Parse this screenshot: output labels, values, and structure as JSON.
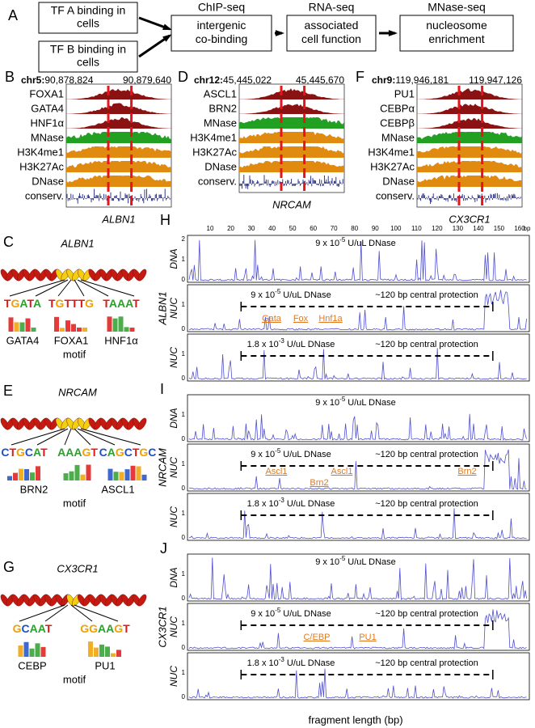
{
  "flow": {
    "label": "A",
    "inputs": [
      [
        "TF A binding in",
        "cells"
      ],
      [
        "TF B binding in",
        "cells"
      ]
    ],
    "steps": [
      {
        "title": "ChIP-seq",
        "body": [
          "intergenic",
          "co-binding"
        ]
      },
      {
        "title": "RNA-seq",
        "body": [
          "associated",
          "cell function"
        ]
      },
      {
        "title": "MNase-seq",
        "body": [
          "nucleosome",
          "enrichment"
        ]
      }
    ]
  },
  "browsers": [
    {
      "label": "B",
      "chrom": "chr5:",
      "start": "90,878,824",
      "end": "90,879,640",
      "gene": "ALBN1",
      "tracks": [
        {
          "name": "FOXA1",
          "color": "#8b1212"
        },
        {
          "name": "GATA4",
          "color": "#8b1212"
        },
        {
          "name": "HNF1α",
          "color": "#8b1212"
        },
        {
          "name": "MNase",
          "color": "#22a022"
        },
        {
          "name": "H3K4me1",
          "color": "#e08a10"
        },
        {
          "name": "H3K27Ac",
          "color": "#e08a10"
        },
        {
          "name": "DNase",
          "color": "#e08a10"
        },
        {
          "name": "conserv.",
          "color": "#1a237e"
        }
      ]
    },
    {
      "label": "D",
      "chrom": "chr12:",
      "start": "45,445,022",
      "end": "45,445,670",
      "gene": "NRCAM",
      "tracks": [
        {
          "name": "ASCL1",
          "color": "#8b1212"
        },
        {
          "name": "BRN2",
          "color": "#8b1212"
        },
        {
          "name": "MNase",
          "color": "#22a022"
        },
        {
          "name": "H3K4me1",
          "color": "#e08a10"
        },
        {
          "name": "H3K27Ac",
          "color": "#e08a10"
        },
        {
          "name": "DNase",
          "color": "#e08a10"
        },
        {
          "name": "conserv.",
          "color": "#1a237e"
        }
      ]
    },
    {
      "label": "F",
      "chrom": "chr9:",
      "start": "119,946,181",
      "end": "119,947,126",
      "gene": "CX3CR1",
      "tracks": [
        {
          "name": "PU1",
          "color": "#8b1212"
        },
        {
          "name": "CEBPα",
          "color": "#8b1212"
        },
        {
          "name": "CEBPβ",
          "color": "#8b1212"
        },
        {
          "name": "MNase",
          "color": "#22a022"
        },
        {
          "name": "H3K4me1",
          "color": "#e08a10"
        },
        {
          "name": "H3K27Ac",
          "color": "#e08a10"
        },
        {
          "name": "DNase",
          "color": "#e08a10"
        },
        {
          "name": "conserv.",
          "color": "#1a237e"
        }
      ]
    }
  ],
  "motifs": [
    {
      "label": "C",
      "gene": "ALBN1",
      "sequences": [
        "TGATA",
        "TGTTTG",
        "TAAAT"
      ],
      "factors": [
        "GATA4",
        "FOXA1",
        "HNF1α"
      ],
      "caption": "motif"
    },
    {
      "label": "E",
      "gene": "NRCAM",
      "sequences": [
        "CTGCAT",
        "AAAGT",
        "CAGCTGC"
      ],
      "factors": [
        "BRN2",
        "ASCL1"
      ],
      "caption": "motif"
    },
    {
      "label": "G",
      "gene": "CX3CR1",
      "sequences": [
        "GCAAT",
        "GGAAGT"
      ],
      "factors": [
        "CEBP",
        "PU1"
      ],
      "caption": "motif"
    }
  ],
  "traces": {
    "xticks": [
      10,
      20,
      30,
      40,
      50,
      60,
      70,
      80,
      90,
      100,
      110,
      120,
      130,
      140,
      150,
      160
    ],
    "xunit": "bp",
    "xlabel": "fragment length (bp)",
    "panels": [
      {
        "label": "H",
        "gene": "ALBN1",
        "rows": [
          {
            "ylabel": "DNA",
            "yticks": [
              0,
              1,
              2
            ],
            "dose": {
              "mantissa": "9 x 10",
              "exponent": "-5",
              "unit": "U/uL DNase"
            }
          },
          {
            "ylabel": "NUC",
            "yticks": [
              0,
              1
            ],
            "dose": {
              "mantissa": "9 x 10",
              "exponent": "-5",
              "unit": "U/uL DNase"
            },
            "protection": "~120 bp central protection",
            "sites": [
              "Gata",
              "Fox",
              "Hnf1a"
            ]
          },
          {
            "ylabel": "NUC",
            "yticks": [
              0,
              1
            ],
            "dose": {
              "mantissa": "1.8 x 10",
              "exponent": "-3",
              "unit": "U/uL DNase"
            },
            "protection": "~120 bp central protection"
          }
        ]
      },
      {
        "label": "I",
        "gene": "NRCAM",
        "rows": [
          {
            "ylabel": "DNA",
            "yticks": [
              0,
              1
            ],
            "dose": {
              "mantissa": "9 x 10",
              "exponent": "-5",
              "unit": "U/uL DNase"
            }
          },
          {
            "ylabel": "NUC",
            "yticks": [
              0,
              1
            ],
            "dose": {
              "mantissa": "9 x 10",
              "exponent": "-5",
              "unit": "U/uL DNase"
            },
            "protection": "~120 bp central protection",
            "sites": [
              "Ascl1",
              "Brn2",
              "Ascl1",
              "Brn2"
            ]
          },
          {
            "ylabel": "NUC",
            "yticks": [
              0,
              1
            ],
            "dose": {
              "mantissa": "1.8 x 10",
              "exponent": "-3",
              "unit": "U/uL DNase"
            },
            "protection": "~120 bp central protection"
          }
        ]
      },
      {
        "label": "J",
        "gene": "CX3CR1",
        "rows": [
          {
            "ylabel": "DNA",
            "yticks": [
              0,
              1
            ],
            "dose": {
              "mantissa": "9 x 10",
              "exponent": "-5",
              "unit": "U/uL DNase"
            }
          },
          {
            "ylabel": "NUC",
            "yticks": [
              0,
              1
            ],
            "dose": {
              "mantissa": "9 x 10",
              "exponent": "-5",
              "unit": "U/uL DNase"
            },
            "protection": "~120 bp central protection",
            "sites": [
              "C/EBP",
              "PU1"
            ]
          },
          {
            "ylabel": "NUC",
            "yticks": [
              0,
              1
            ],
            "dose": {
              "mantissa": "1.8 x 10",
              "exponent": "-3",
              "unit": "U/uL DNase"
            },
            "protection": "~120 bp central protection"
          }
        ]
      }
    ]
  }
}
